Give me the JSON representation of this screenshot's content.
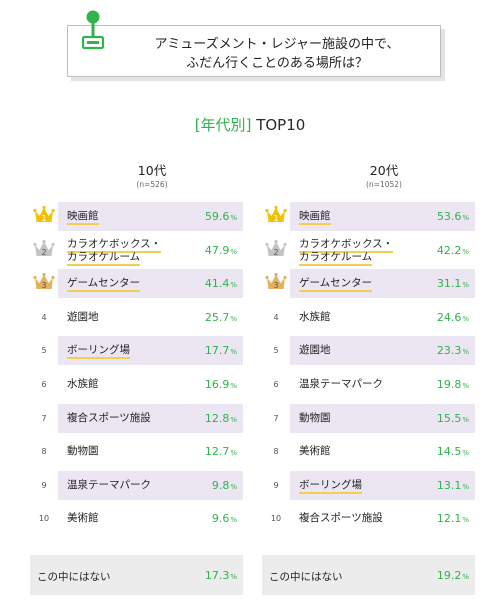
{
  "title": {
    "line1": "アミューズメント・レジャー施設の中で、",
    "line2": "ふだん行くことのある場所は？"
  },
  "subtitle": {
    "bracket_open": "[",
    "bracket_label": "年代別",
    "bracket_close": "]",
    "rest": " TOP10"
  },
  "colors": {
    "accent_green": "#30b24c",
    "row_shade": "#ece6f3",
    "underline": "#f2cf4f",
    "gold": "#f2c200",
    "silver": "#c4c4c4",
    "bronze": "#e3b25f"
  },
  "chart_data": [
    {
      "type": "table",
      "group": "10代",
      "n": "(n=526)",
      "unit": "%",
      "rows": [
        {
          "rank": "1",
          "label_lines": [
            "映画館"
          ],
          "value": "59.6"
        },
        {
          "rank": "2",
          "label_lines": [
            "カラオケボックス・",
            "カラオケルーム"
          ],
          "value": "47.9"
        },
        {
          "rank": "3",
          "label_lines": [
            "ゲームセンター"
          ],
          "value": "41.4"
        },
        {
          "rank": "4",
          "label_lines": [
            "遊園地"
          ],
          "value": "25.7"
        },
        {
          "rank": "5",
          "label_lines": [
            "ボーリング場"
          ],
          "value": "17.7"
        },
        {
          "rank": "6",
          "label_lines": [
            "水族館"
          ],
          "value": "16.9"
        },
        {
          "rank": "7",
          "label_lines": [
            "複合スポーツ施設"
          ],
          "value": "12.8"
        },
        {
          "rank": "8",
          "label_lines": [
            "動物園"
          ],
          "value": "12.7"
        },
        {
          "rank": "9",
          "label_lines": [
            "温泉テーマパーク"
          ],
          "value": "9.8"
        },
        {
          "rank": "10",
          "label_lines": [
            "美術館"
          ],
          "value": "9.6"
        }
      ],
      "none": {
        "label": "この中にはない",
        "value": "17.3"
      }
    },
    {
      "type": "table",
      "group": "20代",
      "n": "(n=1052)",
      "unit": "%",
      "rows": [
        {
          "rank": "1",
          "label_lines": [
            "映画館"
          ],
          "value": "53.6"
        },
        {
          "rank": "2",
          "label_lines": [
            "カラオケボックス・",
            "カラオケルーム"
          ],
          "value": "42.2"
        },
        {
          "rank": "3",
          "label_lines": [
            "ゲームセンター"
          ],
          "value": "31.1"
        },
        {
          "rank": "4",
          "label_lines": [
            "水族館"
          ],
          "value": "24.6"
        },
        {
          "rank": "5",
          "label_lines": [
            "遊園地"
          ],
          "value": "23.3"
        },
        {
          "rank": "6",
          "label_lines": [
            "温泉テーマパーク"
          ],
          "value": "19.8"
        },
        {
          "rank": "7",
          "label_lines": [
            "動物園"
          ],
          "value": "15.5"
        },
        {
          "rank": "8",
          "label_lines": [
            "美術館"
          ],
          "value": "14.5"
        },
        {
          "rank": "9",
          "label_lines": [
            "ボーリング場"
          ],
          "value": "13.1"
        },
        {
          "rank": "10",
          "label_lines": [
            "複合スポーツ施設"
          ],
          "value": "12.1"
        }
      ],
      "none": {
        "label": "この中にはない",
        "value": "19.2"
      }
    }
  ]
}
